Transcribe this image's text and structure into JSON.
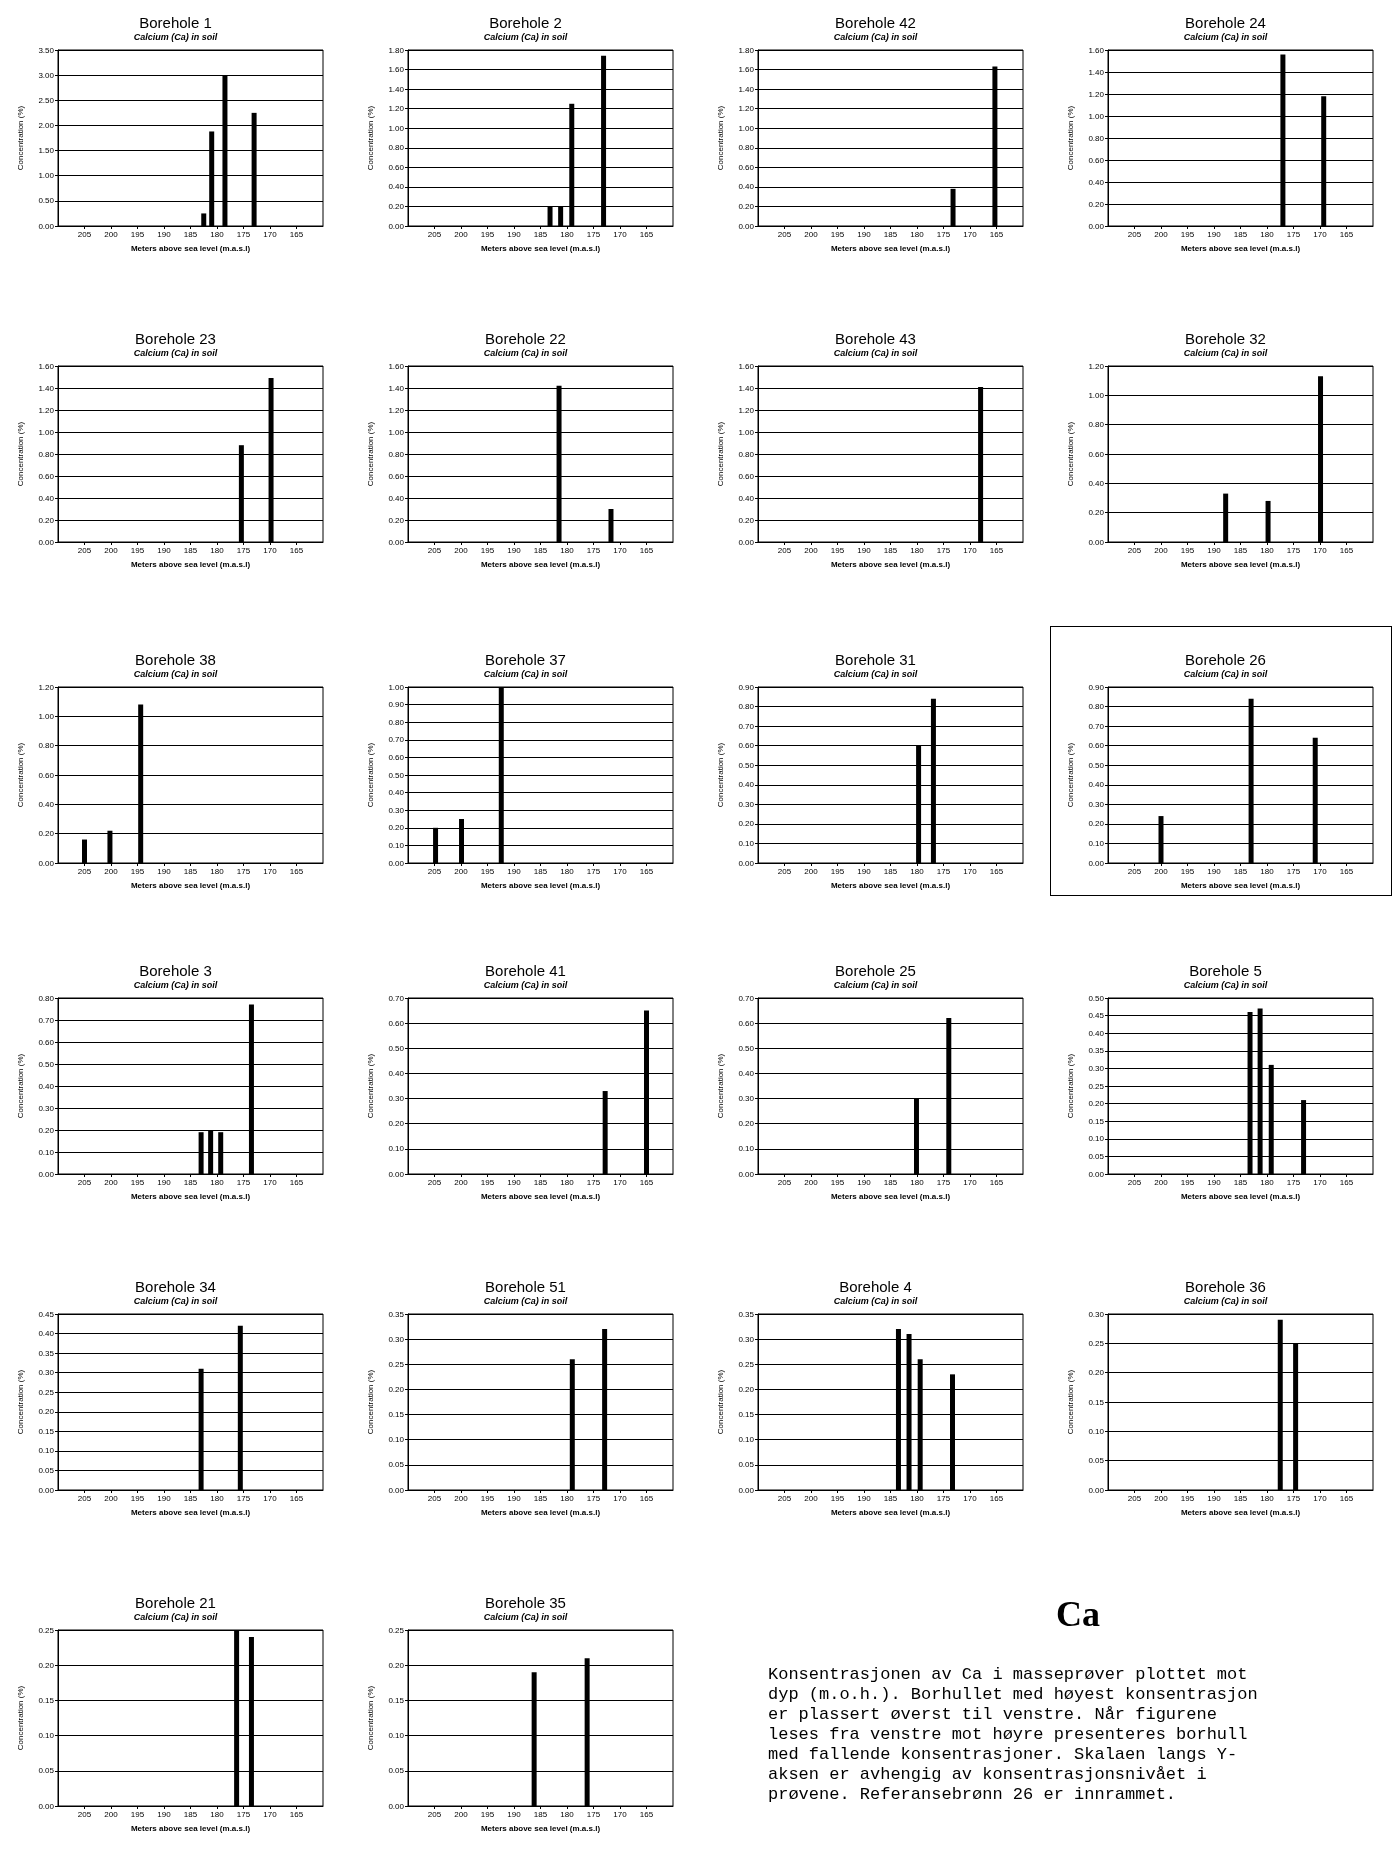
{
  "chart_data": [
    {
      "type": "bar",
      "title": "Borehole 1",
      "subtitle": "Calcium (Ca) in soil",
      "xlabel": "Meters above sea level (m.a.s.l)",
      "ylabel": "Concentration (%)",
      "x": [
        182.5,
        181,
        178.5,
        173
      ],
      "values": [
        0.25,
        1.88,
        3.0,
        2.25
      ],
      "color": "#000000",
      "xlim": [
        210,
        160
      ],
      "xticks": [
        205,
        200,
        195,
        190,
        185,
        180,
        175,
        170,
        165
      ],
      "ylim": [
        0,
        3.5
      ],
      "yticks": [
        {
          "value": 0,
          "label": "0.00"
        },
        {
          "value": 0.5,
          "label": "0.50"
        },
        {
          "value": 1,
          "label": "1.00"
        },
        {
          "value": 1.5,
          "label": "1.50"
        },
        {
          "value": 2,
          "label": "2.00"
        },
        {
          "value": 2.5,
          "label": "2.50"
        },
        {
          "value": 3,
          "label": "3.00"
        },
        {
          "value": 3.5,
          "label": "3.50"
        }
      ],
      "grid": "y"
    },
    {
      "type": "bar",
      "title": "Borehole 2",
      "subtitle": "Calcium (Ca) in soil",
      "xlabel": "Meters above sea level (m.a.s.l)",
      "ylabel": "Concentration (%)",
      "x": [
        183.2,
        181.2,
        179.1,
        173.1
      ],
      "values": [
        0.2,
        0.2,
        1.25,
        1.74
      ],
      "color": "#000000",
      "xlim": [
        210,
        160
      ],
      "xticks": [
        205,
        200,
        195,
        190,
        185,
        180,
        175,
        170,
        165
      ],
      "ylim": [
        0,
        1.8
      ],
      "yticks": [
        {
          "value": 0,
          "label": "0.00"
        },
        {
          "value": 0.2,
          "label": "0.20"
        },
        {
          "value": 0.4,
          "label": "0.40"
        },
        {
          "value": 0.6,
          "label": "0.60"
        },
        {
          "value": 0.8,
          "label": "0.80"
        },
        {
          "value": 1,
          "label": "1.00"
        },
        {
          "value": 1.2,
          "label": "1.20"
        },
        {
          "value": 1.4,
          "label": "1.40"
        },
        {
          "value": 1.6,
          "label": "1.60"
        },
        {
          "value": 1.8,
          "label": "1.80"
        }
      ],
      "grid": "y"
    },
    {
      "type": "bar",
      "title": "Borehole 42",
      "subtitle": "Calcium (Ca) in soil",
      "xlabel": "Meters above sea level (m.a.s.l)",
      "ylabel": "Concentration (%)",
      "x": [
        173.2,
        165.3
      ],
      "values": [
        0.38,
        1.63
      ],
      "color": "#000000",
      "xlim": [
        210,
        160
      ],
      "xticks": [
        205,
        200,
        195,
        190,
        185,
        180,
        175,
        170,
        165
      ],
      "ylim": [
        0,
        1.8
      ],
      "yticks": [
        {
          "value": 0,
          "label": "0.00"
        },
        {
          "value": 0.2,
          "label": "0.20"
        },
        {
          "value": 0.4,
          "label": "0.40"
        },
        {
          "value": 0.6,
          "label": "0.60"
        },
        {
          "value": 0.8,
          "label": "0.80"
        },
        {
          "value": 1,
          "label": "1.00"
        },
        {
          "value": 1.2,
          "label": "1.20"
        },
        {
          "value": 1.4,
          "label": "1.40"
        },
        {
          "value": 1.6,
          "label": "1.60"
        },
        {
          "value": 1.8,
          "label": "1.80"
        }
      ],
      "grid": "y"
    },
    {
      "type": "bar",
      "title": "Borehole 24",
      "subtitle": "Calcium (Ca) in soil",
      "xlabel": "Meters above sea level (m.a.s.l)",
      "ylabel": "Concentration (%)",
      "x": [
        177,
        169.3
      ],
      "values": [
        1.56,
        1.18
      ],
      "color": "#000000",
      "xlim": [
        210,
        160
      ],
      "xticks": [
        205,
        200,
        195,
        190,
        185,
        180,
        175,
        170,
        165
      ],
      "ylim": [
        0,
        1.6
      ],
      "yticks": [
        {
          "value": 0,
          "label": "0.00"
        },
        {
          "value": 0.2,
          "label": "0.20"
        },
        {
          "value": 0.4,
          "label": "0.40"
        },
        {
          "value": 0.6,
          "label": "0.60"
        },
        {
          "value": 0.8,
          "label": "0.80"
        },
        {
          "value": 1,
          "label": "1.00"
        },
        {
          "value": 1.2,
          "label": "1.20"
        },
        {
          "value": 1.4,
          "label": "1.40"
        },
        {
          "value": 1.6,
          "label": "1.60"
        }
      ],
      "grid": "y"
    },
    {
      "type": "bar",
      "title": "Borehole 23",
      "subtitle": "Calcium (Ca) in soil",
      "xlabel": "Meters above sea level (m.a.s.l)",
      "ylabel": "Concentration (%)",
      "x": [
        175.4,
        169.8
      ],
      "values": [
        0.88,
        1.49
      ],
      "color": "#000000",
      "xlim": [
        210,
        160
      ],
      "xticks": [
        205,
        200,
        195,
        190,
        185,
        180,
        175,
        170,
        165
      ],
      "ylim": [
        0,
        1.6
      ],
      "yticks": [
        {
          "value": 0,
          "label": "0.00"
        },
        {
          "value": 0.2,
          "label": "0.20"
        },
        {
          "value": 0.4,
          "label": "0.40"
        },
        {
          "value": 0.6,
          "label": "0.60"
        },
        {
          "value": 0.8,
          "label": "0.80"
        },
        {
          "value": 1,
          "label": "1.00"
        },
        {
          "value": 1.2,
          "label": "1.20"
        },
        {
          "value": 1.4,
          "label": "1.40"
        },
        {
          "value": 1.6,
          "label": "1.60"
        }
      ],
      "grid": "y"
    },
    {
      "type": "bar",
      "title": "Borehole 22",
      "subtitle": "Calcium (Ca) in soil",
      "xlabel": "Meters above sea level (m.a.s.l)",
      "ylabel": "Concentration (%)",
      "x": [
        181.5,
        171.7
      ],
      "values": [
        1.42,
        0.3
      ],
      "color": "#000000",
      "xlim": [
        210,
        160
      ],
      "xticks": [
        205,
        200,
        195,
        190,
        185,
        180,
        175,
        170,
        165
      ],
      "ylim": [
        0,
        1.6
      ],
      "yticks": [
        {
          "value": 0,
          "label": "0.00"
        },
        {
          "value": 0.2,
          "label": "0.20"
        },
        {
          "value": 0.4,
          "label": "0.40"
        },
        {
          "value": 0.6,
          "label": "0.60"
        },
        {
          "value": 0.8,
          "label": "0.80"
        },
        {
          "value": 1,
          "label": "1.00"
        },
        {
          "value": 1.2,
          "label": "1.20"
        },
        {
          "value": 1.4,
          "label": "1.40"
        },
        {
          "value": 1.6,
          "label": "1.60"
        }
      ],
      "grid": "y"
    },
    {
      "type": "bar",
      "title": "Borehole 43",
      "subtitle": "Calcium (Ca) in soil",
      "xlabel": "Meters above sea level (m.a.s.l)",
      "ylabel": "Concentration (%)",
      "x": [
        168
      ],
      "values": [
        1.41
      ],
      "color": "#000000",
      "xlim": [
        210,
        160
      ],
      "xticks": [
        205,
        200,
        195,
        190,
        185,
        180,
        175,
        170,
        165
      ],
      "ylim": [
        0,
        1.6
      ],
      "yticks": [
        {
          "value": 0,
          "label": "0.00"
        },
        {
          "value": 0.2,
          "label": "0.20"
        },
        {
          "value": 0.4,
          "label": "0.40"
        },
        {
          "value": 0.6,
          "label": "0.60"
        },
        {
          "value": 0.8,
          "label": "0.80"
        },
        {
          "value": 1,
          "label": "1.00"
        },
        {
          "value": 1.2,
          "label": "1.20"
        },
        {
          "value": 1.4,
          "label": "1.40"
        },
        {
          "value": 1.6,
          "label": "1.60"
        }
      ],
      "grid": "y"
    },
    {
      "type": "bar",
      "title": "Borehole 32",
      "subtitle": "Calcium (Ca) in soil",
      "xlabel": "Meters above sea level (m.a.s.l)",
      "ylabel": "Concentration (%)",
      "x": [
        187.8,
        179.8,
        169.9
      ],
      "values": [
        0.33,
        0.28,
        1.13
      ],
      "color": "#000000",
      "xlim": [
        210,
        160
      ],
      "xticks": [
        205,
        200,
        195,
        190,
        185,
        180,
        175,
        170,
        165
      ],
      "ylim": [
        0,
        1.2
      ],
      "yticks": [
        {
          "value": 0,
          "label": "0.00"
        },
        {
          "value": 0.2,
          "label": "0.20"
        },
        {
          "value": 0.4,
          "label": "0.40"
        },
        {
          "value": 0.6,
          "label": "0.60"
        },
        {
          "value": 0.8,
          "label": "0.80"
        },
        {
          "value": 1,
          "label": "1.00"
        },
        {
          "value": 1.2,
          "label": "1.20"
        }
      ],
      "grid": "y"
    },
    {
      "type": "bar",
      "title": "Borehole 38",
      "subtitle": "Calcium (Ca) in soil",
      "xlabel": "Meters above sea level (m.a.s.l)",
      "ylabel": "Concentration (%)",
      "x": [
        205,
        200.2,
        194.4
      ],
      "values": [
        0.16,
        0.22,
        1.08
      ],
      "color": "#000000",
      "xlim": [
        210,
        160
      ],
      "xticks": [
        205,
        200,
        195,
        190,
        185,
        180,
        175,
        170,
        165
      ],
      "ylim": [
        0,
        1.2
      ],
      "yticks": [
        {
          "value": 0,
          "label": "0.00"
        },
        {
          "value": 0.2,
          "label": "0.20"
        },
        {
          "value": 0.4,
          "label": "0.40"
        },
        {
          "value": 0.6,
          "label": "0.60"
        },
        {
          "value": 0.8,
          "label": "0.80"
        },
        {
          "value": 1,
          "label": "1.00"
        },
        {
          "value": 1.2,
          "label": "1.20"
        }
      ],
      "grid": "y"
    },
    {
      "type": "bar",
      "title": "Borehole 37",
      "subtitle": "Calcium (Ca) in soil",
      "xlabel": "Meters above sea level (m.a.s.l)",
      "ylabel": "Concentration (%)",
      "x": [
        204.8,
        199.9,
        192.4
      ],
      "values": [
        0.2,
        0.25,
        1.0
      ],
      "color": "#000000",
      "xlim": [
        210,
        160
      ],
      "xticks": [
        205,
        200,
        195,
        190,
        185,
        180,
        175,
        170,
        165
      ],
      "ylim": [
        0,
        1
      ],
      "yticks": [
        {
          "value": 0,
          "label": "0.00"
        },
        {
          "value": 0.1,
          "label": "0.10"
        },
        {
          "value": 0.2,
          "label": "0.20"
        },
        {
          "value": 0.3,
          "label": "0.30"
        },
        {
          "value": 0.4,
          "label": "0.40"
        },
        {
          "value": 0.5,
          "label": "0.50"
        },
        {
          "value": 0.6,
          "label": "0.60"
        },
        {
          "value": 0.7,
          "label": "0.70"
        },
        {
          "value": 0.8,
          "label": "0.80"
        },
        {
          "value": 0.9,
          "label": "0.90"
        },
        {
          "value": 1,
          "label": "1.00"
        }
      ],
      "grid": "y"
    },
    {
      "type": "bar",
      "title": "Borehole 31",
      "subtitle": "Calcium (Ca) in soil",
      "xlabel": "Meters above sea level (m.a.s.l)",
      "ylabel": "Concentration (%)",
      "x": [
        179.7,
        176.9
      ],
      "values": [
        0.6,
        0.84
      ],
      "color": "#000000",
      "xlim": [
        210,
        160
      ],
      "xticks": [
        205,
        200,
        195,
        190,
        185,
        180,
        175,
        170,
        165
      ],
      "ylim": [
        0,
        0.9
      ],
      "yticks": [
        {
          "value": 0,
          "label": "0.00"
        },
        {
          "value": 0.1,
          "label": "0.10"
        },
        {
          "value": 0.2,
          "label": "0.20"
        },
        {
          "value": 0.3,
          "label": "0.30"
        },
        {
          "value": 0.4,
          "label": "0.40"
        },
        {
          "value": 0.5,
          "label": "0.50"
        },
        {
          "value": 0.6,
          "label": "0.60"
        },
        {
          "value": 0.7,
          "label": "0.70"
        },
        {
          "value": 0.8,
          "label": "0.80"
        },
        {
          "value": 0.9,
          "label": "0.90"
        }
      ],
      "grid": "y"
    },
    {
      "type": "bar",
      "title": "Borehole 26",
      "subtitle": "Calcium (Ca) in soil",
      "xlabel": "Meters above sea level (m.a.s.l)",
      "ylabel": "Concentration (%)",
      "x": [
        200,
        183,
        170.9
      ],
      "values": [
        0.24,
        0.84,
        0.64
      ],
      "color": "#000000",
      "xlim": [
        210,
        160
      ],
      "xticks": [
        205,
        200,
        195,
        190,
        185,
        180,
        175,
        170,
        165
      ],
      "ylim": [
        0,
        0.9
      ],
      "yticks": [
        {
          "value": 0,
          "label": "0.00"
        },
        {
          "value": 0.1,
          "label": "0.10"
        },
        {
          "value": 0.2,
          "label": "0.20"
        },
        {
          "value": 0.3,
          "label": "0.30"
        },
        {
          "value": 0.4,
          "label": "0.40"
        },
        {
          "value": 0.5,
          "label": "0.50"
        },
        {
          "value": 0.6,
          "label": "0.60"
        },
        {
          "value": 0.7,
          "label": "0.70"
        },
        {
          "value": 0.8,
          "label": "0.80"
        },
        {
          "value": 0.9,
          "label": "0.90"
        }
      ],
      "grid": "y"
    },
    {
      "type": "bar",
      "title": "Borehole 3",
      "subtitle": "Calcium (Ca) in soil",
      "xlabel": "Meters above sea level (m.a.s.l)",
      "ylabel": "Concentration (%)",
      "x": [
        183,
        181.2,
        179.3,
        173.5
      ],
      "values": [
        0.19,
        0.2,
        0.19,
        0.77
      ],
      "color": "#000000",
      "xlim": [
        210,
        160
      ],
      "xticks": [
        205,
        200,
        195,
        190,
        185,
        180,
        175,
        170,
        165
      ],
      "ylim": [
        0,
        0.8
      ],
      "yticks": [
        {
          "value": 0,
          "label": "0.00"
        },
        {
          "value": 0.1,
          "label": "0.10"
        },
        {
          "value": 0.2,
          "label": "0.20"
        },
        {
          "value": 0.3,
          "label": "0.30"
        },
        {
          "value": 0.4,
          "label": "0.40"
        },
        {
          "value": 0.5,
          "label": "0.50"
        },
        {
          "value": 0.6,
          "label": "0.60"
        },
        {
          "value": 0.7,
          "label": "0.70"
        },
        {
          "value": 0.8,
          "label": "0.80"
        }
      ],
      "grid": "y"
    },
    {
      "type": "bar",
      "title": "Borehole 41",
      "subtitle": "Calcium (Ca) in soil",
      "xlabel": "Meters above sea level (m.a.s.l)",
      "ylabel": "Concentration (%)",
      "x": [
        172.8,
        165
      ],
      "values": [
        0.33,
        0.65
      ],
      "color": "#000000",
      "xlim": [
        210,
        160
      ],
      "xticks": [
        205,
        200,
        195,
        190,
        185,
        180,
        175,
        170,
        165
      ],
      "ylim": [
        0,
        0.7
      ],
      "yticks": [
        {
          "value": 0,
          "label": "0.00"
        },
        {
          "value": 0.1,
          "label": "0.10"
        },
        {
          "value": 0.2,
          "label": "0.20"
        },
        {
          "value": 0.3,
          "label": "0.30"
        },
        {
          "value": 0.4,
          "label": "0.40"
        },
        {
          "value": 0.5,
          "label": "0.50"
        },
        {
          "value": 0.6,
          "label": "0.60"
        },
        {
          "value": 0.7,
          "label": "0.70"
        }
      ],
      "grid": "y"
    },
    {
      "type": "bar",
      "title": "Borehole 25",
      "subtitle": "Calcium (Ca) in soil",
      "xlabel": "Meters above sea level (m.a.s.l)",
      "ylabel": "Concentration (%)",
      "x": [
        180.1,
        174
      ],
      "values": [
        0.3,
        0.62
      ],
      "color": "#000000",
      "xlim": [
        210,
        160
      ],
      "xticks": [
        205,
        200,
        195,
        190,
        185,
        180,
        175,
        170,
        165
      ],
      "ylim": [
        0,
        0.7
      ],
      "yticks": [
        {
          "value": 0,
          "label": "0.00"
        },
        {
          "value": 0.1,
          "label": "0.10"
        },
        {
          "value": 0.2,
          "label": "0.20"
        },
        {
          "value": 0.3,
          "label": "0.30"
        },
        {
          "value": 0.4,
          "label": "0.40"
        },
        {
          "value": 0.5,
          "label": "0.50"
        },
        {
          "value": 0.6,
          "label": "0.60"
        },
        {
          "value": 0.7,
          "label": "0.70"
        }
      ],
      "grid": "y"
    },
    {
      "type": "bar",
      "title": "Borehole 5",
      "subtitle": "Calcium (Ca) in soil",
      "xlabel": "Meters above sea level (m.a.s.l)",
      "ylabel": "Concentration (%)",
      "x": [
        183.2,
        181.3,
        179.2,
        173.1
      ],
      "values": [
        0.46,
        0.47,
        0.31,
        0.21
      ],
      "color": "#000000",
      "xlim": [
        210,
        160
      ],
      "xticks": [
        205,
        200,
        195,
        190,
        185,
        180,
        175,
        170,
        165
      ],
      "ylim": [
        0,
        0.5
      ],
      "yticks": [
        {
          "value": 0,
          "label": "0.00"
        },
        {
          "value": 0.05,
          "label": "0.05"
        },
        {
          "value": 0.1,
          "label": "0.10"
        },
        {
          "value": 0.15,
          "label": "0.15"
        },
        {
          "value": 0.2,
          "label": "0.20"
        },
        {
          "value": 0.25,
          "label": "0.25"
        },
        {
          "value": 0.3,
          "label": "0.30"
        },
        {
          "value": 0.35,
          "label": "0.35"
        },
        {
          "value": 0.4,
          "label": "0.40"
        },
        {
          "value": 0.45,
          "label": "0.45"
        },
        {
          "value": 0.5,
          "label": "0.50"
        }
      ],
      "grid": "y"
    },
    {
      "type": "bar",
      "title": "Borehole 34",
      "subtitle": "Calcium (Ca) in soil",
      "xlabel": "Meters above sea level (m.a.s.l)",
      "ylabel": "Concentration (%)",
      "x": [
        183,
        175.6
      ],
      "values": [
        0.31,
        0.42
      ],
      "color": "#000000",
      "xlim": [
        210,
        160
      ],
      "xticks": [
        205,
        200,
        195,
        190,
        185,
        180,
        175,
        170,
        165
      ],
      "ylim": [
        0,
        0.45
      ],
      "yticks": [
        {
          "value": 0,
          "label": "0.00"
        },
        {
          "value": 0.05,
          "label": "0.05"
        },
        {
          "value": 0.1,
          "label": "0.10"
        },
        {
          "value": 0.15,
          "label": "0.15"
        },
        {
          "value": 0.2,
          "label": "0.20"
        },
        {
          "value": 0.25,
          "label": "0.25"
        },
        {
          "value": 0.3,
          "label": "0.30"
        },
        {
          "value": 0.35,
          "label": "0.35"
        },
        {
          "value": 0.4,
          "label": "0.40"
        },
        {
          "value": 0.45,
          "label": "0.45"
        }
      ],
      "grid": "y"
    },
    {
      "type": "bar",
      "title": "Borehole 51",
      "subtitle": "Calcium (Ca) in soil",
      "xlabel": "Meters above sea level (m.a.s.l)",
      "ylabel": "Concentration (%)",
      "x": [
        179,
        172.9
      ],
      "values": [
        0.26,
        0.32
      ],
      "color": "#000000",
      "xlim": [
        210,
        160
      ],
      "xticks": [
        205,
        200,
        195,
        190,
        185,
        180,
        175,
        170,
        165
      ],
      "ylim": [
        0,
        0.35
      ],
      "yticks": [
        {
          "value": 0,
          "label": "0.00"
        },
        {
          "value": 0.05,
          "label": "0.05"
        },
        {
          "value": 0.1,
          "label": "0.10"
        },
        {
          "value": 0.15,
          "label": "0.15"
        },
        {
          "value": 0.2,
          "label": "0.20"
        },
        {
          "value": 0.25,
          "label": "0.25"
        },
        {
          "value": 0.3,
          "label": "0.30"
        },
        {
          "value": 0.35,
          "label": "0.35"
        }
      ],
      "grid": "y"
    },
    {
      "type": "bar",
      "title": "Borehole 4",
      "subtitle": "Calcium (Ca) in soil",
      "xlabel": "Meters above sea level (m.a.s.l)",
      "ylabel": "Concentration (%)",
      "x": [
        183.5,
        181.5,
        179.4,
        173.3
      ],
      "values": [
        0.32,
        0.31,
        0.26,
        0.23
      ],
      "color": "#000000",
      "xlim": [
        210,
        160
      ],
      "xticks": [
        205,
        200,
        195,
        190,
        185,
        180,
        175,
        170,
        165
      ],
      "ylim": [
        0,
        0.35
      ],
      "yticks": [
        {
          "value": 0,
          "label": "0.00"
        },
        {
          "value": 0.05,
          "label": "0.05"
        },
        {
          "value": 0.1,
          "label": "0.10"
        },
        {
          "value": 0.15,
          "label": "0.15"
        },
        {
          "value": 0.2,
          "label": "0.20"
        },
        {
          "value": 0.25,
          "label": "0.25"
        },
        {
          "value": 0.3,
          "label": "0.30"
        },
        {
          "value": 0.35,
          "label": "0.35"
        }
      ],
      "grid": "y"
    },
    {
      "type": "bar",
      "title": "Borehole 36",
      "subtitle": "Calcium (Ca) in soil",
      "xlabel": "Meters above sea level (m.a.s.l)",
      "ylabel": "Concentration (%)",
      "x": [
        177.5,
        174.6
      ],
      "values": [
        0.29,
        0.25
      ],
      "color": "#000000",
      "xlim": [
        210,
        160
      ],
      "xticks": [
        205,
        200,
        195,
        190,
        185,
        180,
        175,
        170,
        165
      ],
      "ylim": [
        0,
        0.3
      ],
      "yticks": [
        {
          "value": 0,
          "label": "0.00"
        },
        {
          "value": 0.05,
          "label": "0.05"
        },
        {
          "value": 0.1,
          "label": "0.10"
        },
        {
          "value": 0.15,
          "label": "0.15"
        },
        {
          "value": 0.2,
          "label": "0.20"
        },
        {
          "value": 0.25,
          "label": "0.25"
        },
        {
          "value": 0.3,
          "label": "0.30"
        }
      ],
      "grid": "y"
    },
    {
      "type": "bar",
      "title": "Borehole 21",
      "subtitle": "Calcium (Ca) in soil",
      "xlabel": "Meters above sea level (m.a.s.l)",
      "ylabel": "Concentration (%)",
      "x": [
        176.3,
        173.5
      ],
      "values": [
        0.25,
        0.24
      ],
      "color": "#000000",
      "xlim": [
        210,
        160
      ],
      "xticks": [
        205,
        200,
        195,
        190,
        185,
        180,
        175,
        170,
        165
      ],
      "ylim": [
        0,
        0.25
      ],
      "yticks": [
        {
          "value": 0,
          "label": "0.00"
        },
        {
          "value": 0.05,
          "label": "0.05"
        },
        {
          "value": 0.1,
          "label": "0.10"
        },
        {
          "value": 0.15,
          "label": "0.15"
        },
        {
          "value": 0.2,
          "label": "0.20"
        },
        {
          "value": 0.25,
          "label": "0.25"
        }
      ],
      "grid": "y"
    },
    {
      "type": "bar",
      "title": "Borehole 35",
      "subtitle": "Calcium (Ca) in soil",
      "xlabel": "Meters above sea level (m.a.s.l)",
      "ylabel": "Concentration (%)",
      "x": [
        186.2,
        176.2
      ],
      "values": [
        0.19,
        0.21
      ],
      "color": "#000000",
      "xlim": [
        210,
        160
      ],
      "xticks": [
        205,
        200,
        195,
        190,
        185,
        180,
        175,
        170,
        165
      ],
      "ylim": [
        0,
        0.25
      ],
      "yticks": [
        {
          "value": 0,
          "label": "0.00"
        },
        {
          "value": 0.05,
          "label": "0.05"
        },
        {
          "value": 0.1,
          "label": "0.10"
        },
        {
          "value": 0.15,
          "label": "0.15"
        },
        {
          "value": 0.2,
          "label": "0.20"
        },
        {
          "value": 0.25,
          "label": "0.25"
        }
      ],
      "grid": "y"
    },
    {
      "type": "other",
      "title": "Ca",
      "annotations": [
        "Konsentrasjonen av Ca i masseprøver plottet mot dyp (m.o.h.). Borhullet med høyest konsentrasjon er plassert øverst til venstre. Når figurene leses fra venstre mot høyre presenteres borhull med fallende konsentrasjoner. Skalaen langs Y-aksen er avhengig av konsentrasjonsnivået i prøvene. Referansebrønn 26 er innrammet."
      ]
    }
  ]
}
